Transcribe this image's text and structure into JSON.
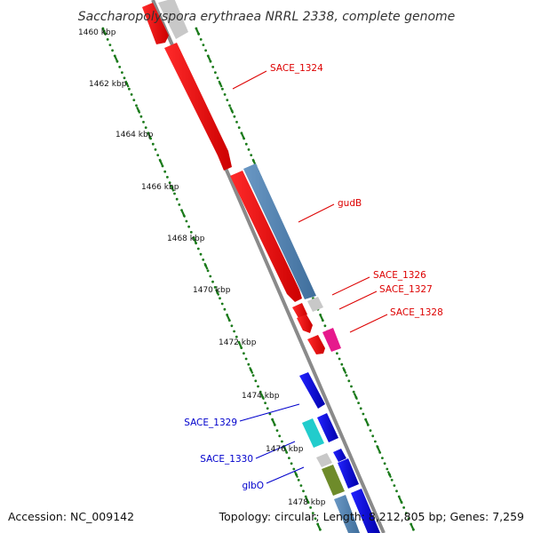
{
  "title": "Saccharopolyspora erythraea NRRL 2338, complete genome",
  "footer": {
    "accession": "Accession: NC_009142",
    "summary": "Topology: circular; Length: 8,212,805 bp; Genes: 7,259"
  },
  "ticks": [
    "1460 kbp",
    "1462 kbp",
    "1464 kbp",
    "1466 kbp",
    "1468 kbp",
    "1470 kbp",
    "1472 kbp",
    "1474 kbp",
    "1476 kbp",
    "1478 kbp"
  ],
  "gene_labels": {
    "SACE_1324": "SACE_1324",
    "gudB": "gudB",
    "SACE_1326": "SACE_1326",
    "SACE_1327": "SACE_1327",
    "SACE_1328": "SACE_1328",
    "SACE_1329": "SACE_1329",
    "SACE_1330": "SACE_1330",
    "glbO": "glbO"
  },
  "colors": {
    "forward_label": "#dd0000",
    "reverse_label": "#0000cc",
    "tick_dots": "#1a7a1a",
    "backbone": "#888888"
  }
}
